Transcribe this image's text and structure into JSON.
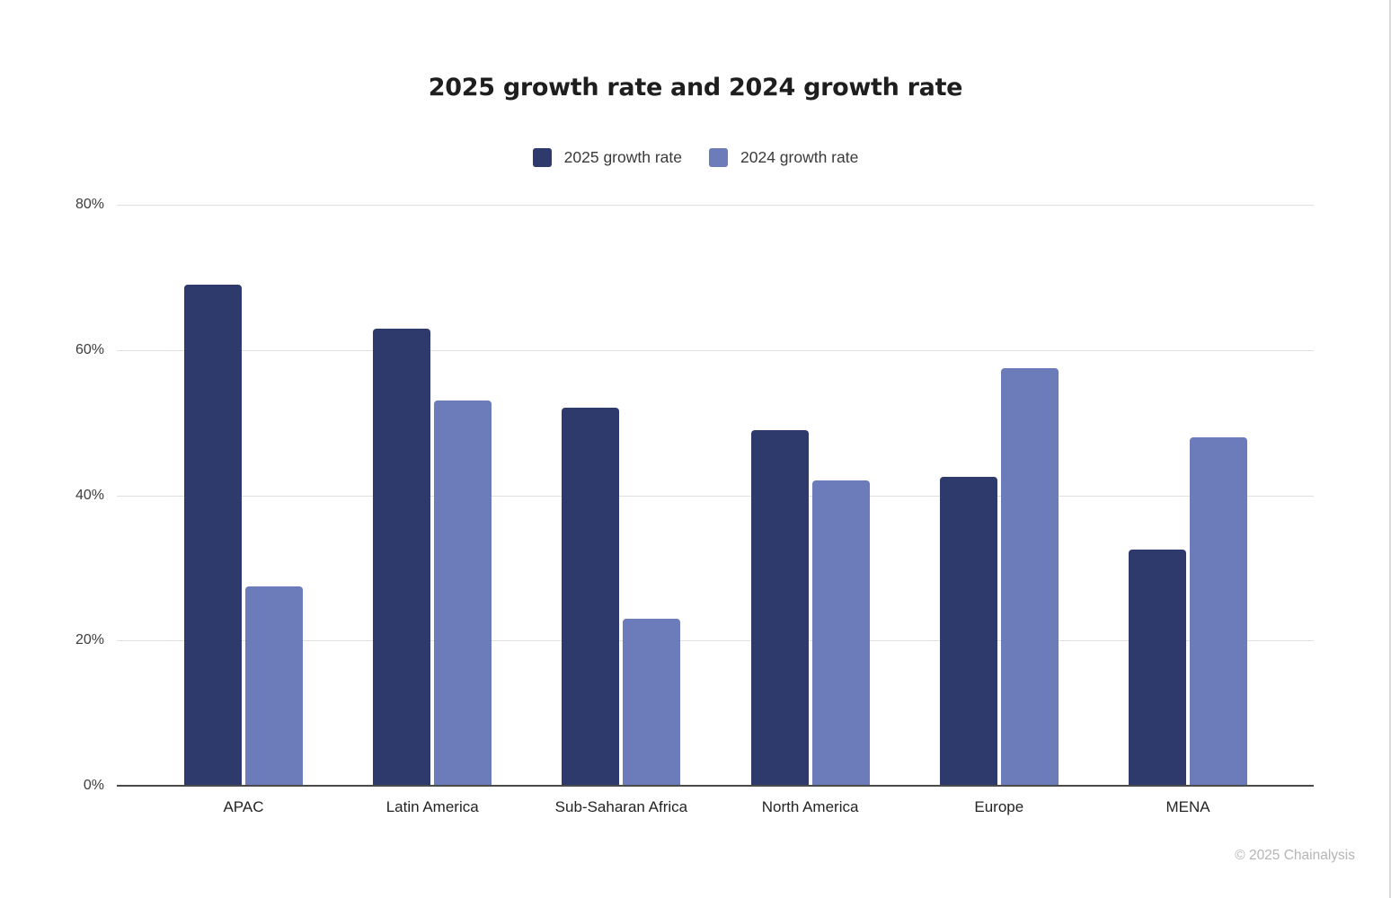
{
  "page": {
    "footer": "© 2025 Chainalysis"
  },
  "chart_data": {
    "type": "bar",
    "title": "2025 growth rate and 2024 growth rate",
    "categories": [
      "APAC",
      "Latin America",
      "Sub-Saharan Africa",
      "North America",
      "Europe",
      "MENA"
    ],
    "series": [
      {
        "name": "2025 growth rate",
        "color": "#2d3a6b",
        "values": [
          69,
          63,
          52,
          49,
          42.5,
          32.5
        ]
      },
      {
        "name": "2024 growth rate",
        "color": "#6c7bb9",
        "values": [
          27.5,
          53,
          23,
          42,
          57.5,
          48
        ]
      }
    ],
    "xlabel": "",
    "ylabel": "",
    "y_ticks": [
      "0%",
      "20%",
      "40%",
      "60%",
      "80%"
    ],
    "ylim": [
      0,
      80
    ],
    "grid": true,
    "legend_position": "top",
    "value_unit": "%"
  },
  "colors": {
    "gridline": "#e0e0e0",
    "axis_line": "#4a4a4a",
    "tick_text": "#3d3d3d",
    "title_text": "#1e1e1e",
    "footer_text": "#b5b5b5"
  }
}
